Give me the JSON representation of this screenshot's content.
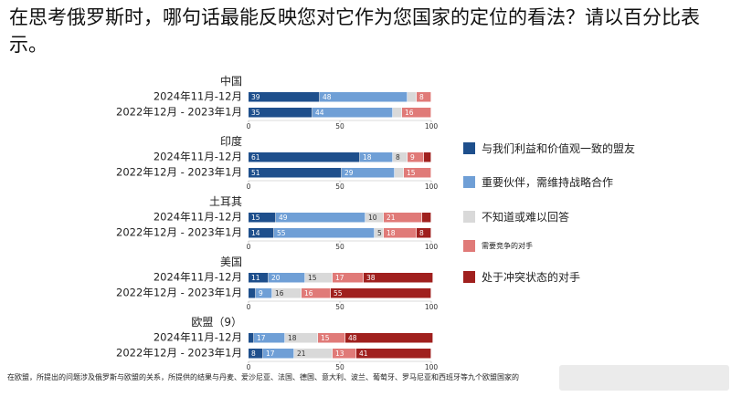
{
  "title": "在思考俄罗斯时，哪句话最能反映您对它作为您国家的定位的看法？请以百分比表示。",
  "footnote": "在欧盟，所提出的问题涉及俄罗斯与欧盟的关系，所提供的结果与丹麦、爱沙尼亚、法国、德国、意大利、波兰、葡萄牙、罗马尼亚和西班牙等九个欧盟国家的",
  "chart_data": {
    "type": "stacked-bar-horizontal",
    "title": "在思考俄罗斯时，哪句话最能反映您对它作为您国家的定位的看法？请以百分比表示。",
    "xlim": [
      0,
      100
    ],
    "ticks": [
      "0",
      "50",
      "100"
    ],
    "series_names": [
      "与我们利益和价值观一致的盟友",
      "重要伙伴，需维持战略合作",
      "不知道或难以回答",
      "需要竞争的对手",
      "处于冲突状态的对手"
    ],
    "colors": [
      "#1e4f8c",
      "#6f9fd6",
      "#d9d9d9",
      "#e07a78",
      "#a0201e"
    ],
    "label_colors": [
      "#ffffff",
      "#ffffff",
      "#333333",
      "#ffffff",
      "#ffffff"
    ],
    "groups": [
      {
        "name": "中国",
        "rows": [
          {
            "period": "2024年11月-12月",
            "values": [
              39,
              48,
              5,
              8,
              0
            ],
            "labels": [
              "39",
              "48",
              "",
              "8",
              ""
            ]
          },
          {
            "period": "2022年12月 - 2023年1月",
            "values": [
              35,
              44,
              5,
              16,
              0
            ],
            "labels": [
              "35",
              "44",
              "",
              "16",
              ""
            ]
          }
        ]
      },
      {
        "name": "印度",
        "rows": [
          {
            "period": "2024年11月-12月",
            "values": [
              61,
              18,
              8,
              9,
              4
            ],
            "labels": [
              "61",
              "18",
              "8",
              "9",
              ""
            ]
          },
          {
            "period": "2022年12月 - 2023年1月",
            "values": [
              51,
              29,
              5,
              15,
              0
            ],
            "labels": [
              "51",
              "29",
              "",
              "15",
              ""
            ]
          }
        ]
      },
      {
        "name": "土耳其",
        "rows": [
          {
            "period": "2024年11月-12月",
            "values": [
              15,
              49,
              10,
              21,
              5
            ],
            "labels": [
              "15",
              "49",
              "10",
              "21",
              ""
            ]
          },
          {
            "period": "2022年12月 - 2023年1月",
            "values": [
              14,
              55,
              5,
              18,
              8
            ],
            "labels": [
              "14",
              "55",
              "5",
              "18",
              "8"
            ]
          }
        ]
      },
      {
        "name": "美国",
        "rows": [
          {
            "period": "2024年11月-12月",
            "values": [
              11,
              20,
              15,
              17,
              38
            ],
            "labels": [
              "11",
              "20",
              "15",
              "17",
              "38"
            ]
          },
          {
            "period": "2022年12月 - 2023年1月",
            "values": [
              4,
              9,
              16,
              16,
              55
            ],
            "labels": [
              "",
              "9",
              "16",
              "16",
              "55"
            ]
          }
        ]
      },
      {
        "name": "欧盟（9）",
        "rows": [
          {
            "period": "2024年11月-12月",
            "values": [
              3,
              17,
              18,
              15,
              48
            ],
            "labels": [
              "",
              "17",
              "18",
              "15",
              "48"
            ]
          },
          {
            "period": "2022年12月 - 2023年1月",
            "values": [
              8,
              17,
              21,
              13,
              41
            ],
            "labels": [
              "8",
              "17",
              "21",
              "13",
              "41"
            ]
          }
        ]
      }
    ]
  }
}
